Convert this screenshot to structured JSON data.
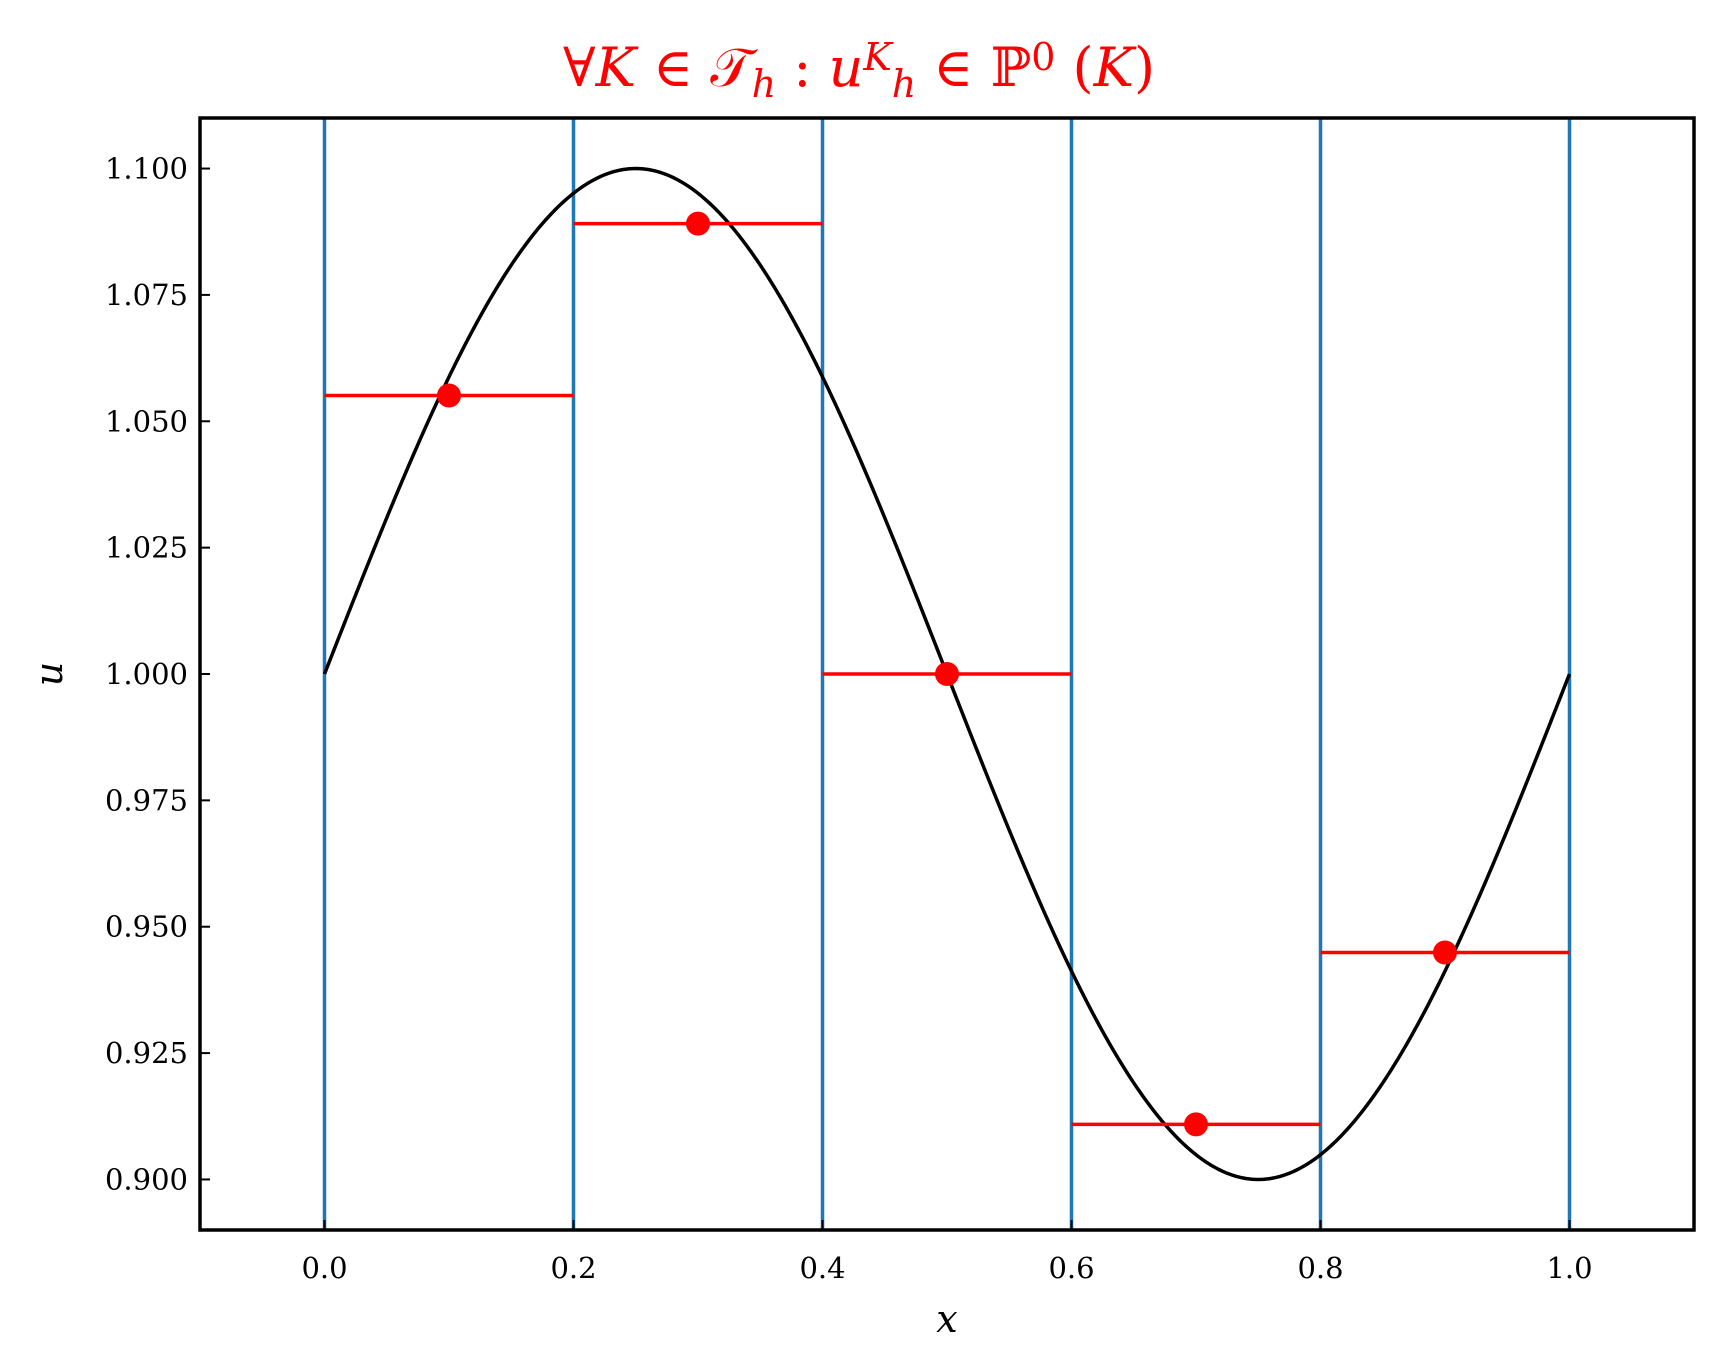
{
  "chart_data": {
    "type": "line",
    "title": {
      "parts": [
        {
          "t": "∀",
          "style": "normal"
        },
        {
          "t": "K",
          "style": "italic"
        },
        {
          "t": " ∈ ",
          "style": "normal"
        },
        {
          "t": "𝒯",
          "style": "normal"
        },
        {
          "t": "h",
          "style": "italic",
          "sub": true
        },
        {
          "t": " : ",
          "style": "normal"
        },
        {
          "t": "u",
          "style": "italic"
        },
        {
          "t": "K",
          "style": "italic",
          "sup": true
        },
        {
          "t": "h",
          "style": "italic",
          "sub": true
        },
        {
          "t": " ∈ ",
          "style": "normal"
        },
        {
          "t": "ℙ",
          "style": "normal"
        },
        {
          "t": "0",
          "style": "normal",
          "sup": true
        },
        {
          "t": " (",
          "style": "normal"
        },
        {
          "t": "K",
          "style": "italic"
        },
        {
          "t": ")",
          "style": "normal"
        }
      ],
      "color": "#ff0000"
    },
    "xlabel": "x",
    "ylabel": "u",
    "xlim": [
      -0.1,
      1.1
    ],
    "ylim": [
      0.89,
      1.11
    ],
    "xticks": [
      0.0,
      0.2,
      0.4,
      0.6,
      0.8,
      1.0
    ],
    "xtick_labels": [
      "0.0",
      "0.2",
      "0.4",
      "0.6",
      "0.8",
      "1.0"
    ],
    "yticks": [
      0.9,
      0.925,
      0.95,
      0.975,
      1.0,
      1.025,
      1.05,
      1.075,
      1.1
    ],
    "ytick_labels": [
      "0.900",
      "0.925",
      "0.950",
      "0.975",
      "1.000",
      "1.025",
      "1.050",
      "1.075",
      "1.100"
    ],
    "curve": {
      "color": "#000000",
      "x_range": [
        0.0,
        1.0
      ],
      "amplitude": 0.1,
      "offset": 1.0,
      "frequency": 1
    },
    "element_boundaries": {
      "x": [
        0.0,
        0.2,
        0.4,
        0.6,
        0.8,
        1.0
      ],
      "color": "#1f77b4"
    },
    "cell_averages": {
      "color": "#ff0000",
      "segments": [
        {
          "x0": 0.0,
          "x1": 0.2,
          "y": 1.0551,
          "xc": 0.1
        },
        {
          "x0": 0.2,
          "x1": 0.4,
          "y": 1.0891,
          "xc": 0.3
        },
        {
          "x0": 0.4,
          "x1": 0.6,
          "y": 1.0,
          "xc": 0.5
        },
        {
          "x0": 0.6,
          "x1": 0.8,
          "y": 0.9109,
          "xc": 0.7
        },
        {
          "x0": 0.8,
          "x1": 1.0,
          "y": 0.9449,
          "xc": 0.9
        }
      ]
    },
    "grid": false,
    "legend": "none"
  }
}
